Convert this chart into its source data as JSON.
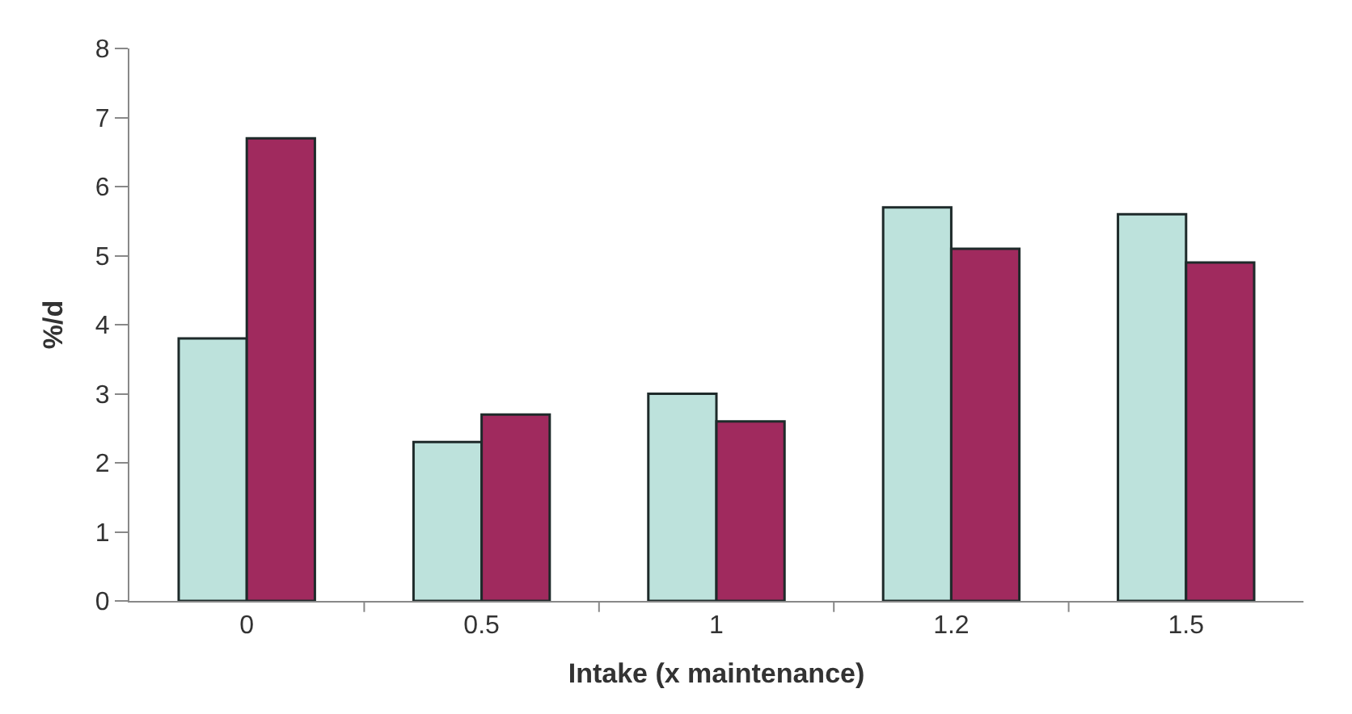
{
  "chart_data": {
    "type": "bar",
    "xlabel": "Intake (x maintenance)",
    "ylabel": "%/d",
    "categories": [
      "0",
      "0.5",
      "1",
      "1.2",
      "1.5"
    ],
    "series": [
      {
        "color": "#bde2dc",
        "values": [
          3.8,
          2.3,
          3.0,
          5.7,
          5.6
        ]
      },
      {
        "color": "#a02a5e",
        "values": [
          6.7,
          2.7,
          2.6,
          5.1,
          4.9
        ]
      }
    ],
    "ylim": [
      0,
      8
    ],
    "yticks": [
      0,
      1,
      2,
      3,
      4,
      5,
      6,
      7,
      8
    ]
  }
}
